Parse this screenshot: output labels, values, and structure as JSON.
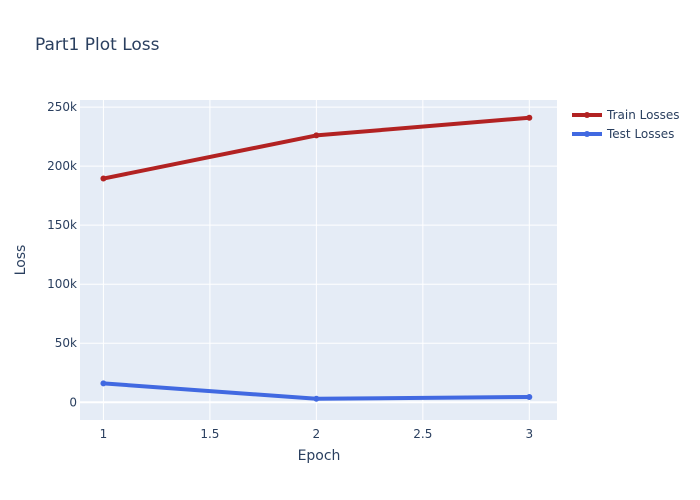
{
  "chart_data": {
    "type": "line",
    "title": "Part1 Plot Loss",
    "xlabel": "Epoch",
    "ylabel": "Loss",
    "x": [
      1,
      2,
      3
    ],
    "xlim": [
      0.89,
      3.13
    ],
    "ylim": [
      -15000,
      256000
    ],
    "xticks": [
      1,
      1.5,
      2,
      2.5,
      3
    ],
    "xtick_labels": [
      "1",
      "1.5",
      "2",
      "2.5",
      "3"
    ],
    "yticks": [
      0,
      50000,
      100000,
      150000,
      200000,
      250000
    ],
    "ytick_labels": [
      "0",
      "50k",
      "100k",
      "150k",
      "200k",
      "250k"
    ],
    "grid": true,
    "legend_position": "top-right",
    "series": [
      {
        "name": "Train Losses",
        "color": "#b22222",
        "values": [
          189500,
          226000,
          241000
        ]
      },
      {
        "name": "Test Losses",
        "color": "#4169e1",
        "values": [
          16000,
          3000,
          4500
        ]
      }
    ]
  }
}
